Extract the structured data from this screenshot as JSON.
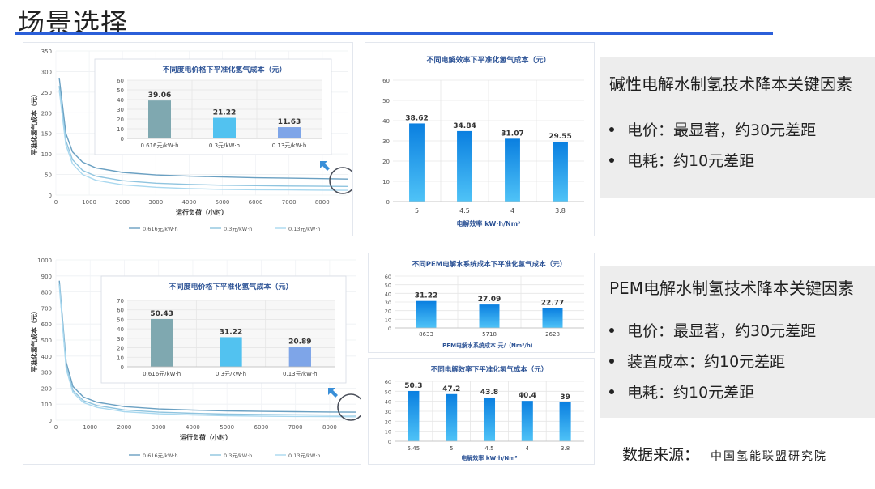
{
  "page": {
    "title": "场景选择"
  },
  "colors": {
    "accent": "#2b5fd9",
    "bar_blue": "#1e9af0",
    "teal": "#7fa8b0",
    "sky": "#52c2f0",
    "lavender": "#7ea5e8"
  },
  "alkaline": {
    "heading": "碱性电解水制氢技术降本关键因素",
    "bullets": [
      "电价：最显著，约30元差距",
      "电耗：约10元差距"
    ]
  },
  "pem": {
    "heading": "PEM电解水制氢技术降本关键因素",
    "bullets": [
      "电价：最显著，约30元差距",
      "装置成本：约10元差距",
      "电耗：约10元差距"
    ]
  },
  "source": {
    "label": "数据来源：",
    "org": "中国氢能联盟研究院"
  },
  "chart_data": [
    {
      "id": "alk-load-line",
      "type": "line",
      "ylabel": "平准化氢气成本（元）",
      "xlabel": "运行负荷（小时）",
      "xlim": [
        0,
        8760
      ],
      "ylim": [
        0,
        350
      ],
      "xticks": [
        0,
        1000,
        2000,
        3000,
        4000,
        5000,
        6000,
        7000,
        8000
      ],
      "yticks": [
        0,
        50,
        100,
        150,
        200,
        250,
        300,
        350
      ],
      "series": [
        {
          "name": "0.616元/kW·h",
          "color": "#6aa0c2",
          "x": [
            100,
            300,
            500,
            800,
            1200,
            2000,
            3000,
            4000,
            5000,
            6000,
            7000,
            8000,
            8760
          ],
          "values": [
            285,
            150,
            105,
            80,
            66,
            55,
            49,
            46,
            44,
            42,
            41,
            40,
            39
          ]
        },
        {
          "name": "0.3元/kW·h",
          "color": "#8fc4df",
          "x": [
            100,
            300,
            500,
            800,
            1200,
            2000,
            3000,
            4000,
            5000,
            6000,
            7000,
            8000,
            8760
          ],
          "values": [
            265,
            132,
            86,
            60,
            46,
            35,
            29,
            26,
            24,
            23,
            22,
            21.5,
            21
          ]
        },
        {
          "name": "0.13元/kW·h",
          "color": "#a9d8ef",
          "x": [
            100,
            300,
            500,
            800,
            1200,
            2000,
            3000,
            4000,
            5000,
            6000,
            7000,
            8000,
            8760
          ],
          "values": [
            255,
            122,
            76,
            50,
            36,
            25,
            19,
            16,
            14,
            13,
            12.5,
            12,
            11.6
          ]
        }
      ]
    },
    {
      "id": "alk-price-bar",
      "type": "bar",
      "title": "不同度电价格下平准化氢气成本（元）",
      "categories": [
        "0.616元/kW·h",
        "0.3元/kW·h",
        "0.13元/kW·h"
      ],
      "values": [
        39.06,
        21.22,
        11.63
      ],
      "ylim": [
        0,
        60
      ],
      "yticks": [
        0,
        10,
        20,
        30,
        40,
        50,
        60
      ]
    },
    {
      "id": "alk-eff-bar",
      "type": "bar",
      "title": "不同电解效率下平准化氢气成本（元）",
      "xlabel": "电解效率 kW·h/Nm³",
      "categories": [
        "5",
        "4.5",
        "4",
        "3.8"
      ],
      "values": [
        38.62,
        34.84,
        31.07,
        29.55
      ],
      "ylim": [
        0,
        60
      ],
      "yticks": [
        0,
        10,
        20,
        30,
        40,
        50,
        60
      ]
    },
    {
      "id": "pem-load-line",
      "type": "line",
      "ylabel": "平准化氢气成本（元）",
      "xlabel": "运行负荷（小时）",
      "xlim": [
        0,
        8760
      ],
      "ylim": [
        0,
        1000
      ],
      "xticks": [
        0,
        1000,
        2000,
        3000,
        4000,
        5000,
        6000,
        7000,
        8000
      ],
      "yticks": [
        0,
        100,
        200,
        300,
        400,
        500,
        600,
        700,
        800,
        900,
        1000
      ],
      "series": [
        {
          "name": "0.616元/kW·h",
          "color": "#6aa0c2",
          "x": [
            100,
            300,
            500,
            800,
            1200,
            2000,
            3000,
            4000,
            5000,
            6000,
            7000,
            8000,
            8760
          ],
          "values": [
            870,
            360,
            210,
            145,
            112,
            85,
            70,
            63,
            58,
            55,
            53,
            51,
            50
          ]
        },
        {
          "name": "0.3元/kW·h",
          "color": "#8fc4df",
          "x": [
            100,
            300,
            500,
            800,
            1200,
            2000,
            3000,
            4000,
            5000,
            6000,
            7000,
            8000,
            8760
          ],
          "values": [
            850,
            330,
            185,
            122,
            92,
            64,
            50,
            43,
            38,
            36,
            34,
            32,
            31
          ]
        },
        {
          "name": "0.13元/kW·h",
          "color": "#a9d8ef",
          "x": [
            100,
            300,
            500,
            800,
            1200,
            2000,
            3000,
            4000,
            5000,
            6000,
            7000,
            8000,
            8760
          ],
          "values": [
            840,
            318,
            172,
            110,
            80,
            53,
            40,
            33,
            28,
            25,
            23,
            22,
            21
          ]
        }
      ]
    },
    {
      "id": "pem-price-bar",
      "type": "bar",
      "title": "不同度电价格下平准化氢气成本（元）",
      "categories": [
        "0.616元/kW·h",
        "0.3元/kW·h",
        "0.13元/kW·h"
      ],
      "values": [
        50.43,
        31.22,
        20.89
      ],
      "ylim": [
        0,
        70
      ],
      "yticks": [
        0,
        10,
        20,
        30,
        40,
        50,
        60,
        70
      ]
    },
    {
      "id": "pem-sys-bar",
      "type": "bar",
      "title": "不同PEM电解水系统成本下平准化氢气成本（元）",
      "xlabel": "PEM电解水系统成本 元/（Nm³/h）",
      "categories": [
        "8633",
        "5718",
        "2628"
      ],
      "values": [
        31.22,
        27.09,
        22.77
      ],
      "ylim": [
        0,
        60
      ],
      "yticks": [
        0,
        10,
        20,
        30,
        40,
        50,
        60
      ]
    },
    {
      "id": "pem-eff-bar",
      "type": "bar",
      "title": "不同电解效率下平准化氢气成本（元）",
      "xlabel": "电解效率 kW·h/Nm³",
      "categories": [
        "5.45",
        "5",
        "4.5",
        "4",
        "3.8"
      ],
      "values": [
        50.3,
        47.2,
        43.8,
        40.4,
        39
      ],
      "ylim": [
        0,
        60
      ],
      "yticks": [
        0,
        10,
        20,
        30,
        40,
        50,
        60
      ]
    }
  ]
}
